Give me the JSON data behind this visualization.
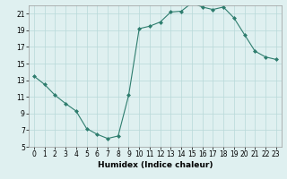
{
  "x": [
    0,
    1,
    2,
    3,
    4,
    5,
    6,
    7,
    8,
    9,
    10,
    11,
    12,
    13,
    14,
    15,
    16,
    17,
    18,
    19,
    20,
    21,
    22,
    23
  ],
  "y": [
    13.5,
    12.5,
    11.2,
    10.2,
    9.3,
    7.2,
    6.5,
    6.0,
    6.3,
    11.2,
    19.2,
    19.5,
    20.0,
    21.2,
    21.3,
    22.3,
    21.8,
    21.5,
    21.8,
    20.5,
    18.5,
    16.5,
    15.8,
    15.5
  ],
  "line_color": "#2e7d6e",
  "marker": "D",
  "marker_size": 2,
  "bg_color": "#dff0f0",
  "grid_color": "#b8d8d8",
  "xlabel": "Humidex (Indice chaleur)",
  "xlim": [
    -0.5,
    23.5
  ],
  "ylim": [
    5,
    22
  ],
  "yticks": [
    5,
    7,
    9,
    11,
    13,
    15,
    17,
    19,
    21
  ],
  "xticks": [
    0,
    1,
    2,
    3,
    4,
    5,
    6,
    7,
    8,
    9,
    10,
    11,
    12,
    13,
    14,
    15,
    16,
    17,
    18,
    19,
    20,
    21,
    22,
    23
  ],
  "label_fontsize": 6.5,
  "tick_fontsize": 5.5
}
